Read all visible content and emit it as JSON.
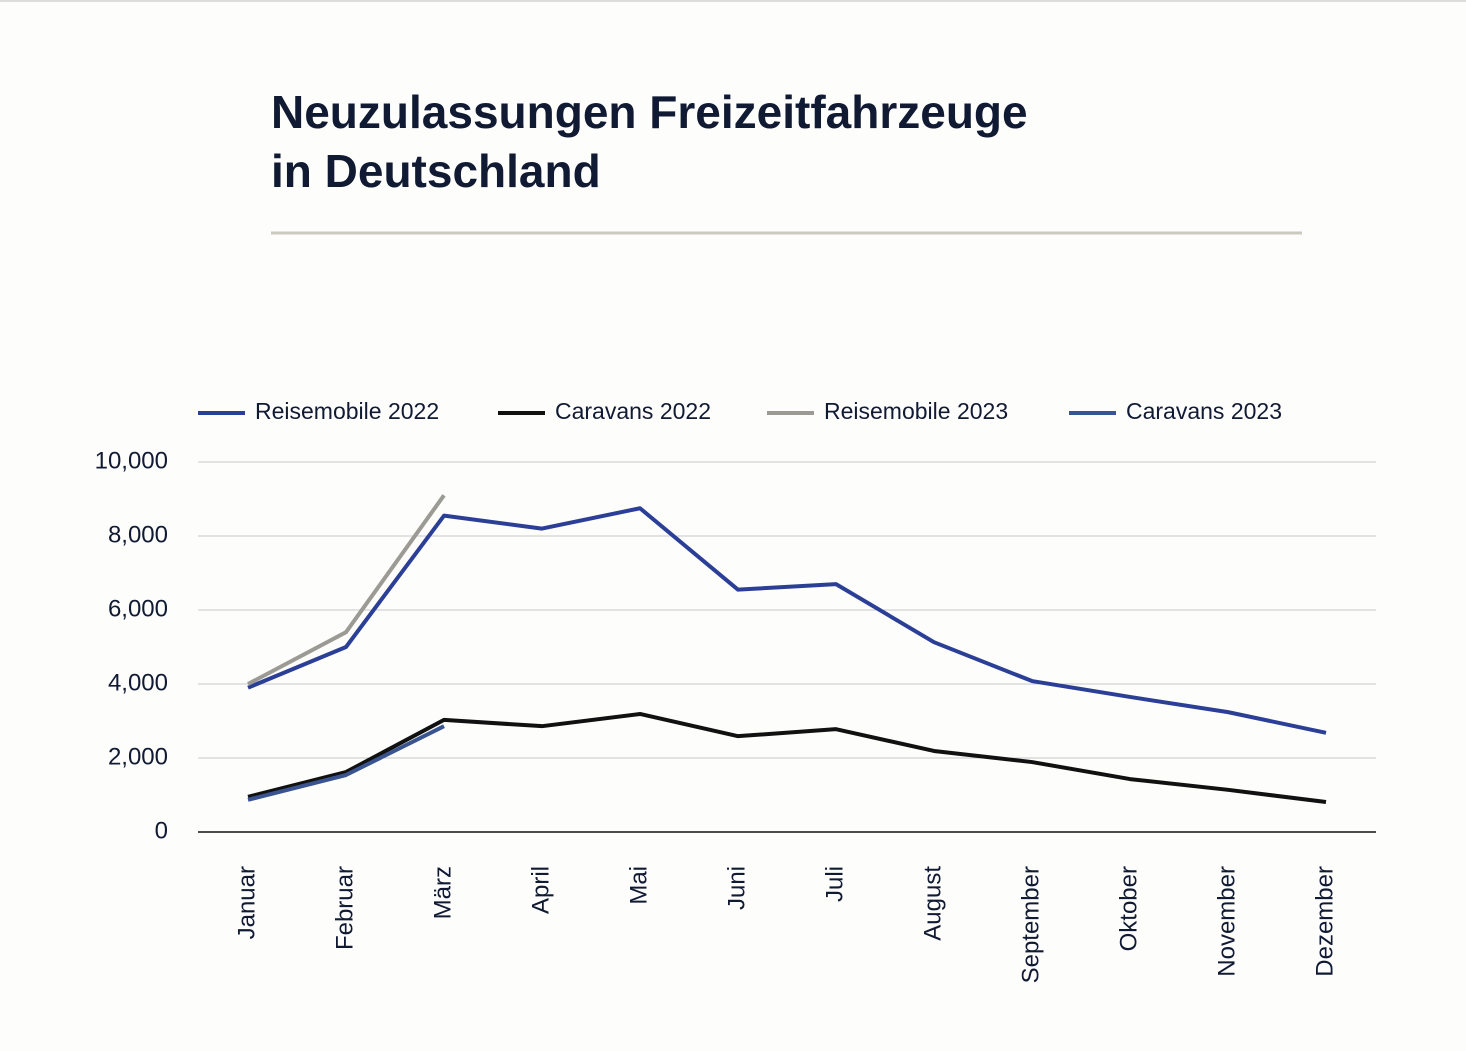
{
  "chart_data": {
    "type": "line",
    "title": [
      "Neuzulassungen Freizeitfahrzeuge",
      "in Deutschland"
    ],
    "categories": [
      "Januar",
      "Februar",
      "März",
      "April",
      "Mai",
      "Juni",
      "Juli",
      "August",
      "September",
      "Oktober",
      "November",
      "Dezember"
    ],
    "series": [
      {
        "name": "Reisemobile 2022",
        "color": "#2b3f96",
        "values": [
          3900,
          5000,
          8550,
          8200,
          8750,
          6550,
          6700,
          5130,
          4080,
          3650,
          3240,
          2680
        ]
      },
      {
        "name": "Caravans 2022",
        "color": "#111111",
        "values": [
          950,
          1620,
          3030,
          2860,
          3190,
          2590,
          2780,
          2190,
          1890,
          1430,
          1140,
          810
        ]
      },
      {
        "name": "Reisemobile 2023",
        "color": "#9b9a94",
        "values": [
          4000,
          5400,
          9100,
          null,
          null,
          null,
          null,
          null,
          null,
          null,
          null,
          null
        ]
      },
      {
        "name": "Caravans 2023",
        "color": "#3a5490",
        "values": [
          870,
          1540,
          2860,
          null,
          null,
          null,
          null,
          null,
          null,
          null,
          null,
          null
        ]
      }
    ],
    "ylim": [
      0,
      10000
    ],
    "yticks": [
      0,
      {
        "value": 2000,
        "label": "2,000"
      },
      {
        "value": 4000,
        "label": "4,000"
      },
      {
        "value": 6000,
        "label": "6,000"
      },
      {
        "value": 8000,
        "label": "8,000"
      },
      {
        "value": 10000,
        "label": "10,000"
      }
    ],
    "grid": true,
    "legend": "top"
  }
}
